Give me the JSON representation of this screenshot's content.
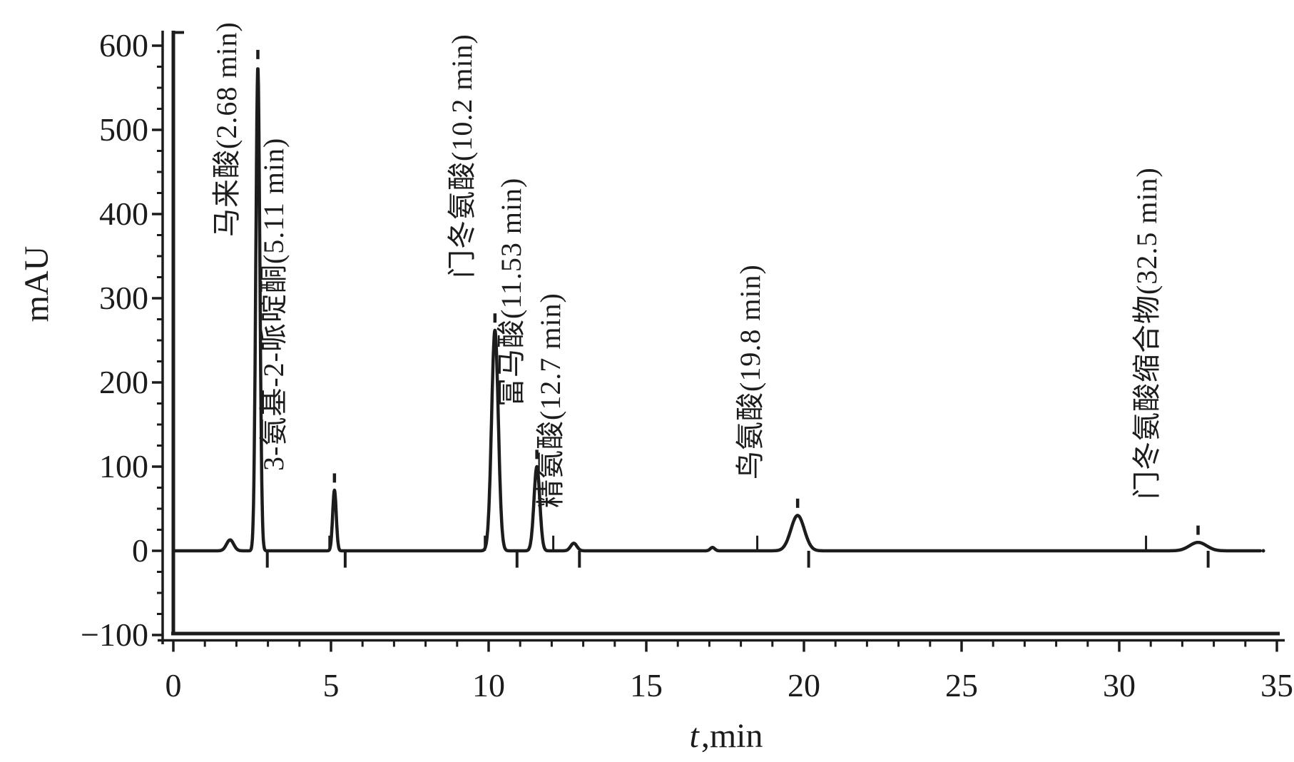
{
  "figure": {
    "background": "#ffffff",
    "ink": "#1c1c1c",
    "description": "HPLC chromatogram, detector signal in mAU versus time in minutes"
  },
  "axes": {
    "y": {
      "label": "mAU",
      "range": [
        -100,
        600
      ],
      "major_ticks": [
        600,
        500,
        400,
        300,
        200,
        100,
        0,
        -100
      ],
      "minor_step_mAU": 25
    },
    "x": {
      "label_symbol": "t",
      "label_unit": ",min",
      "range": [
        0,
        35
      ],
      "major_ticks": [
        0,
        5,
        10,
        15,
        20,
        25,
        30,
        35
      ],
      "minor_step_min": 1
    }
  },
  "chart_data": {
    "type": "line",
    "title": "",
    "xlabel": "t, min",
    "ylabel": "mAU",
    "xlim": [
      0,
      35
    ],
    "ylim": [
      -100,
      600
    ],
    "grid": false,
    "legend": "none",
    "baseline_mAU": 0,
    "peaks": [
      {
        "name": "马来酸",
        "label": "马来酸(2.68 min)",
        "rt_min": 2.68,
        "height_mAU": 575,
        "width_min": 0.09,
        "apex_tick": true
      },
      {
        "name": "3-氨基-2-哌啶酮",
        "label": "3-氨基-2-哌啶酮(5.11 min)",
        "rt_min": 5.11,
        "height_mAU": 72,
        "width_min": 0.08,
        "apex_tick": true
      },
      {
        "name": "门冬氨酸",
        "label": "门冬氨酸(10.2 min)",
        "rt_min": 10.2,
        "height_mAU": 262,
        "width_min": 0.15,
        "apex_tick": true
      },
      {
        "name": "富马酸",
        "label": "富马酸(11.53 min)",
        "rt_min": 11.53,
        "height_mAU": 100,
        "width_min": 0.13,
        "apex_tick": true
      },
      {
        "name": "精氨酸",
        "label": "精氨酸(12.7 min)",
        "rt_min": 12.7,
        "height_mAU": 9,
        "width_min": 0.14,
        "apex_tick": false
      },
      {
        "name": "鸟氨酸",
        "label": "鸟氨酸(19.8 min)",
        "rt_min": 19.8,
        "height_mAU": 42,
        "width_min": 0.3,
        "apex_tick": true
      },
      {
        "name": "门冬氨酸缩合物",
        "label": "门冬氨酸缩合物(32.5 min)",
        "rt_min": 32.5,
        "height_mAU": 10,
        "width_min": 0.38,
        "apex_tick": true
      }
    ],
    "minor_features": {
      "bumps": [
        {
          "rt_min": 1.8,
          "height_mAU": 13,
          "width_min": 0.16
        },
        {
          "rt_min": 17.1,
          "height_mAU": 4,
          "width_min": 0.1
        }
      ],
      "integration_up_marks_min": [
        4.95,
        9.88,
        12.05,
        18.52,
        30.85
      ],
      "integration_down_marks_min": [
        2.98,
        5.45,
        10.9,
        12.88,
        20.15,
        32.82
      ],
      "up_mark_height_mAU": 18,
      "down_mark_depth_mAU": -20
    }
  }
}
